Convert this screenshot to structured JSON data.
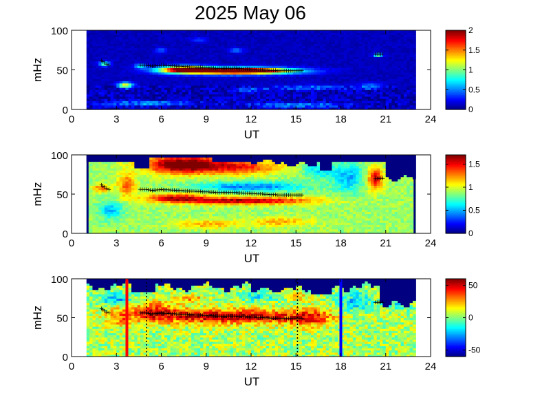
{
  "chart_data": {
    "title": "2025 May 06",
    "panels": [
      {
        "type": "heatmap",
        "xlabel": "UT",
        "ylabel": "mHz",
        "xlim": [
          0,
          24
        ],
        "ylim": [
          0,
          100
        ],
        "xticks": [
          0,
          3,
          6,
          9,
          12,
          15,
          18,
          21,
          24
        ],
        "yticks": [
          0,
          50,
          100
        ],
        "data_x_range": [
          1,
          23
        ],
        "colormap": "jet",
        "clim": [
          0,
          2
        ],
        "colorbar_ticks": [
          0,
          0.5,
          1,
          1.5,
          2
        ],
        "colorbar_labels": [
          "0",
          "0.5",
          "1",
          "1.5",
          "2"
        ],
        "background_value": 0
      },
      {
        "type": "heatmap",
        "xlabel": "UT",
        "ylabel": "mHz",
        "xlim": [
          0,
          24
        ],
        "ylim": [
          0,
          100
        ],
        "xticks": [
          0,
          3,
          6,
          9,
          12,
          15,
          18,
          21,
          24
        ],
        "yticks": [
          0,
          50,
          100
        ],
        "data_x_range": [
          1,
          23
        ],
        "colormap": "jet",
        "clim": [
          0,
          1.7
        ],
        "colorbar_ticks": [
          0,
          0.5,
          1,
          1.5
        ],
        "colorbar_labels": [
          "0",
          "0.5",
          "1",
          "1.5"
        ],
        "background_value": 0.85
      },
      {
        "type": "heatmap",
        "xlabel": "UT",
        "ylabel": "mHz",
        "xlim": [
          0,
          24
        ],
        "ylim": [
          0,
          100
        ],
        "xticks": [
          0,
          3,
          6,
          9,
          12,
          15,
          18,
          21,
          24
        ],
        "yticks": [
          0,
          50,
          100
        ],
        "data_x_range": [
          1,
          23
        ],
        "colormap": "jet",
        "clim": [
          -60,
          60
        ],
        "colorbar_ticks": [
          -50,
          0,
          50
        ],
        "colorbar_labels": [
          "-50",
          "0",
          "50"
        ],
        "background_value": 15,
        "vertical_lines": [
          {
            "x": 3.7,
            "color": "#ff0000",
            "style": "solid"
          },
          {
            "x": 5.0,
            "color": "#000000",
            "style": "dotted"
          },
          {
            "x": 15.1,
            "color": "#000000",
            "style": "dotted"
          },
          {
            "x": 18.0,
            "color": "#0000ff",
            "style": "solid"
          }
        ]
      }
    ],
    "ridge_points": [
      {
        "x": 2.0,
        "y": 62
      },
      {
        "x": 2.2,
        "y": 59
      },
      {
        "x": 2.5,
        "y": 56
      },
      {
        "x": 4.6,
        "y": 56
      },
      {
        "x": 5.0,
        "y": 56
      },
      {
        "x": 5.4,
        "y": 55
      },
      {
        "x": 6.0,
        "y": 56
      },
      {
        "x": 7.0,
        "y": 55
      },
      {
        "x": 8.0,
        "y": 54
      },
      {
        "x": 9.0,
        "y": 53
      },
      {
        "x": 10.0,
        "y": 52
      },
      {
        "x": 11.0,
        "y": 52
      },
      {
        "x": 12.0,
        "y": 51
      },
      {
        "x": 13.0,
        "y": 50
      },
      {
        "x": 14.0,
        "y": 49
      },
      {
        "x": 15.0,
        "y": 49
      },
      {
        "x": 15.4,
        "y": 49
      },
      {
        "x": 20.3,
        "y": 70
      },
      {
        "x": 20.8,
        "y": 70
      }
    ]
  }
}
